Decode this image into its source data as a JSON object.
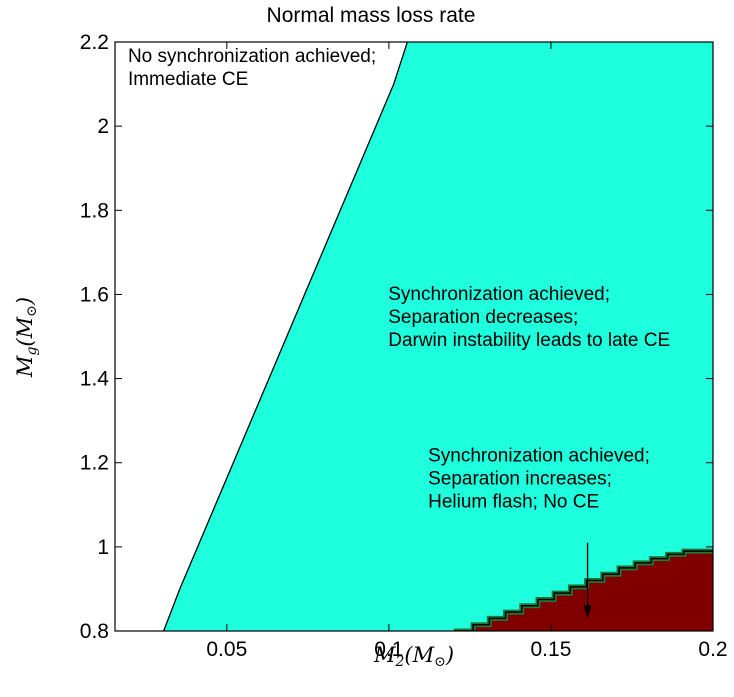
{
  "chart_data": {
    "type": "area",
    "title": "Normal mass loss rate",
    "xlabel": {
      "main": "M",
      "sub": "2",
      "unit_open": "(M",
      "unit_sub": "⊙",
      "unit_close": ")"
    },
    "ylabel": {
      "main": "M",
      "sub": "g",
      "unit_open": "(M",
      "unit_sub": "⊙",
      "unit_close": ")"
    },
    "xlim": [
      0.0155,
      0.2
    ],
    "ylim": [
      0.8,
      2.2
    ],
    "x_ticks": [
      {
        "value": 0.05,
        "label": "0.05"
      },
      {
        "value": 0.1,
        "label": "0.1"
      },
      {
        "value": 0.15,
        "label": "0.15"
      },
      {
        "value": 0.2,
        "label": "0.2"
      }
    ],
    "y_ticks": [
      {
        "value": 0.8,
        "label": "0.8"
      },
      {
        "value": 1.0,
        "label": "1"
      },
      {
        "value": 1.2,
        "label": "1.2"
      },
      {
        "value": 1.4,
        "label": "1.4"
      },
      {
        "value": 1.6,
        "label": "1.6"
      },
      {
        "value": 1.8,
        "label": "1.8"
      },
      {
        "value": 2.0,
        "label": "2"
      },
      {
        "value": 2.2,
        "label": "2.2"
      }
    ],
    "grid": false,
    "regions": [
      {
        "fill": "#ffffff",
        "boundary": [],
        "annotation": [
          "No synchronization achieved;",
          "Immediate CE"
        ],
        "annotation_at": {
          "x": 0.0195,
          "y": 2.152
        }
      },
      {
        "fill": "#1effdd",
        "boundary": [
          [
            0.0305,
            0.8
          ],
          [
            0.0355,
            0.9
          ],
          [
            0.041,
            1.0
          ],
          [
            0.0465,
            1.1
          ],
          [
            0.052,
            1.2
          ],
          [
            0.0575,
            1.3
          ],
          [
            0.063,
            1.4
          ],
          [
            0.0685,
            1.5
          ],
          [
            0.074,
            1.6
          ],
          [
            0.0795,
            1.7
          ],
          [
            0.085,
            1.8
          ],
          [
            0.0905,
            1.9
          ],
          [
            0.096,
            2.0
          ],
          [
            0.1015,
            2.1
          ],
          [
            0.1057,
            2.2
          ]
        ],
        "annotation": [
          "Synchronization achieved;",
          "Separation decreases;",
          "Darwin instability leads to late CE"
        ],
        "annotation_at": {
          "x": 0.0998,
          "y": 1.587
        }
      },
      {
        "fill": "#800000",
        "boundary": [
          [
            0.12,
            0.8
          ],
          [
            0.126,
            0.815
          ],
          [
            0.131,
            0.83
          ],
          [
            0.136,
            0.845
          ],
          [
            0.141,
            0.86
          ],
          [
            0.146,
            0.875
          ],
          [
            0.151,
            0.89
          ],
          [
            0.156,
            0.905
          ],
          [
            0.161,
            0.92
          ],
          [
            0.166,
            0.935
          ],
          [
            0.171,
            0.95
          ],
          [
            0.176,
            0.962
          ],
          [
            0.181,
            0.972
          ],
          [
            0.186,
            0.982
          ],
          [
            0.191,
            0.99
          ],
          [
            0.2,
            0.995
          ]
        ],
        "annotation": [
          "Synchronization achieved;",
          "Separation increases;",
          "Helium flash; No CE"
        ],
        "annotation_at": {
          "x": 0.1121,
          "y": 1.203
        },
        "arrow": {
          "from": [
            0.1613,
            1.01
          ],
          "to": [
            0.1613,
            0.83
          ]
        }
      }
    ]
  }
}
